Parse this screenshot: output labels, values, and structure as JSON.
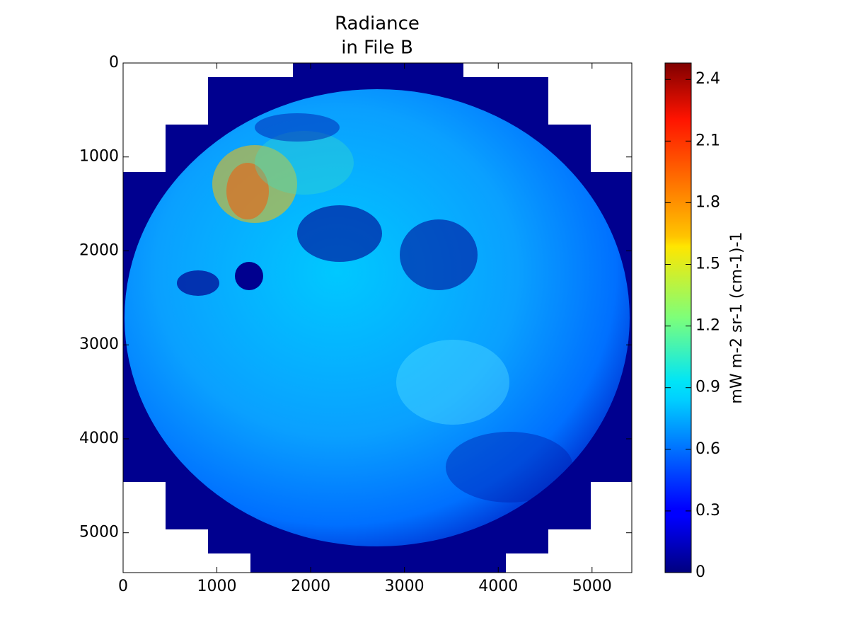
{
  "chart_data": {
    "type": "image",
    "title": [
      "Radiance",
      "in File B"
    ],
    "xlim": [
      0,
      5424
    ],
    "ylim": [
      5424,
      0
    ],
    "xticks": [
      0,
      1000,
      2000,
      3000,
      4000,
      5000
    ],
    "yticks": [
      0,
      1000,
      2000,
      3000,
      4000,
      5000
    ],
    "colormap": "jet",
    "colorbar": {
      "label": "mW m-2 sr-1 (cm-1)-1",
      "lim": [
        0,
        2.48
      ],
      "ticks": [
        0,
        0.3,
        0.6,
        0.9,
        1.2,
        1.5,
        1.8,
        2.1,
        2.4
      ]
    }
  }
}
